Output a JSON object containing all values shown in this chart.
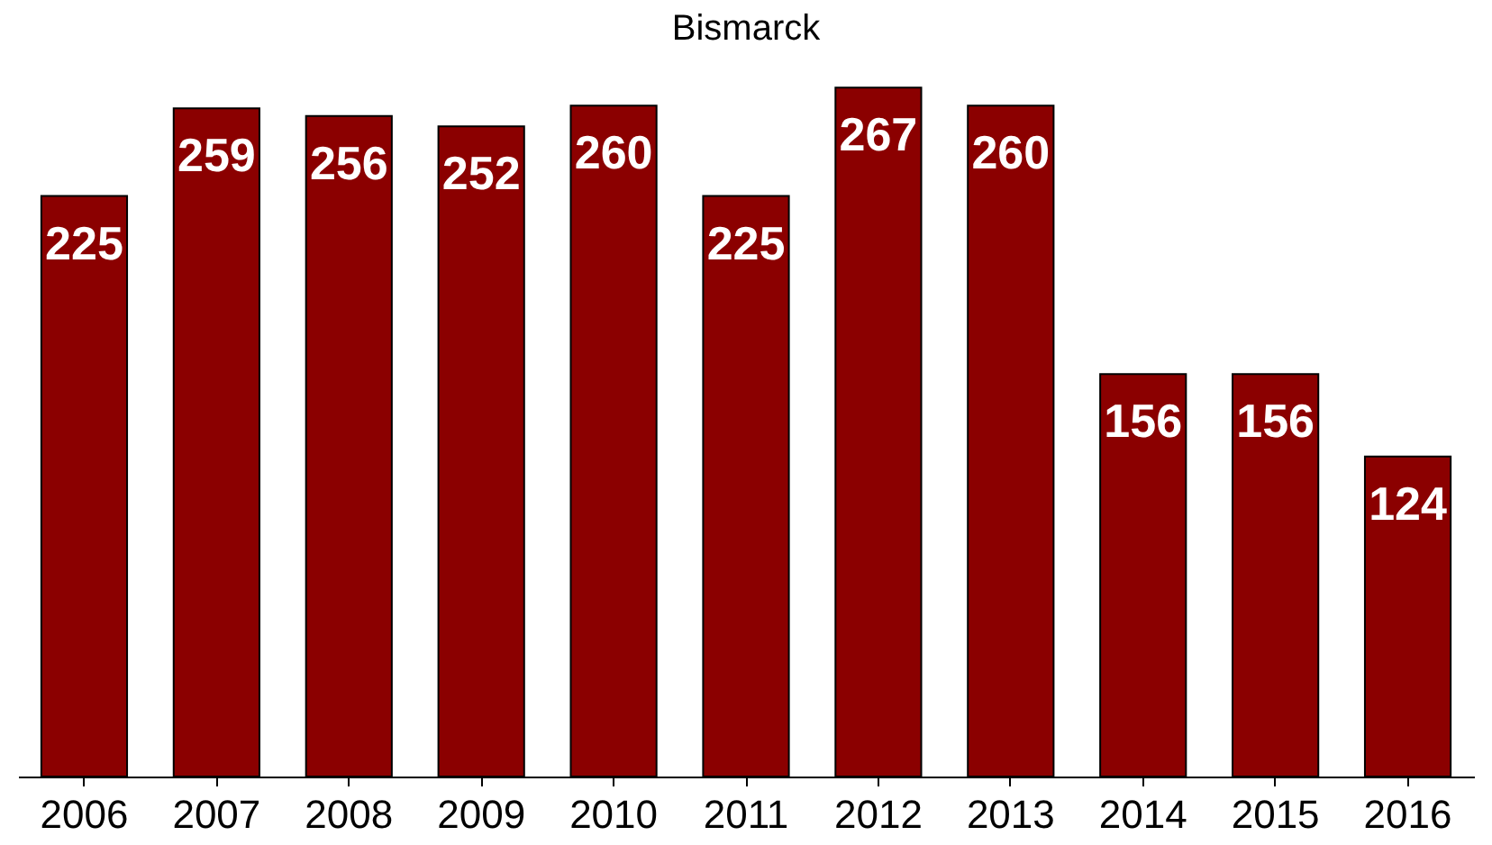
{
  "chart_data": {
    "type": "bar",
    "title": "Bismarck",
    "categories": [
      "2006",
      "2007",
      "2008",
      "2009",
      "2010",
      "2011",
      "2012",
      "2013",
      "2014",
      "2015",
      "2016"
    ],
    "values": [
      225,
      259,
      256,
      252,
      260,
      225,
      267,
      260,
      156,
      156,
      124
    ],
    "color": "#8b0000",
    "data_labels": true,
    "tick_labels": "x"
  }
}
